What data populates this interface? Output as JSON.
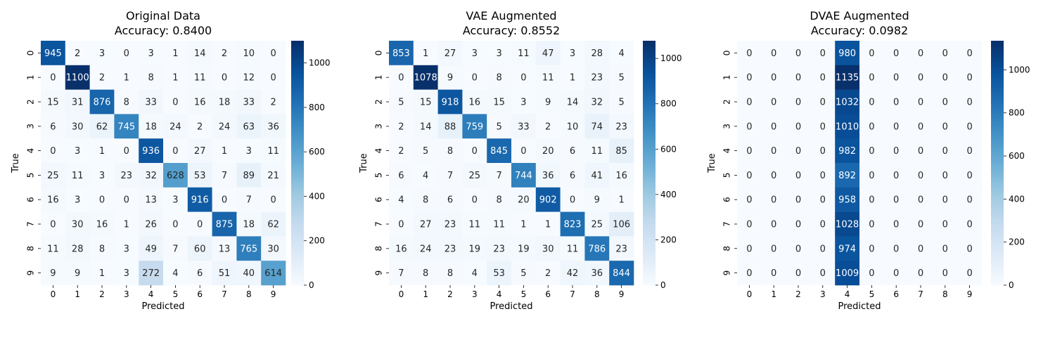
{
  "chart_data": [
    {
      "type": "heatmap",
      "title": "Original Data",
      "subtitle": "Accuracy: 0.8400",
      "xlabel": "Predicted",
      "ylabel": "True",
      "x_ticks": [
        "0",
        "1",
        "2",
        "3",
        "4",
        "5",
        "6",
        "7",
        "8",
        "9"
      ],
      "y_ticks": [
        "0",
        "1",
        "2",
        "3",
        "4",
        "5",
        "6",
        "7",
        "8",
        "9"
      ],
      "colorbar_ticks": [
        0,
        200,
        400,
        600,
        800,
        1000
      ],
      "vmin": 0,
      "vmax": 1100,
      "colormap": "Blues",
      "values": [
        [
          945,
          2,
          3,
          0,
          3,
          1,
          14,
          2,
          10,
          0
        ],
        [
          0,
          1100,
          2,
          1,
          8,
          1,
          11,
          0,
          12,
          0
        ],
        [
          15,
          31,
          876,
          8,
          33,
          0,
          16,
          18,
          33,
          2
        ],
        [
          6,
          30,
          62,
          745,
          18,
          24,
          2,
          24,
          63,
          36
        ],
        [
          0,
          3,
          1,
          0,
          936,
          0,
          27,
          1,
          3,
          11
        ],
        [
          25,
          11,
          3,
          23,
          32,
          628,
          53,
          7,
          89,
          21
        ],
        [
          16,
          3,
          0,
          0,
          13,
          3,
          916,
          0,
          7,
          0
        ],
        [
          0,
          30,
          16,
          1,
          26,
          0,
          0,
          875,
          18,
          62
        ],
        [
          11,
          28,
          8,
          3,
          49,
          7,
          60,
          13,
          765,
          30
        ],
        [
          9,
          9,
          1,
          3,
          272,
          4,
          6,
          51,
          40,
          614
        ]
      ]
    },
    {
      "type": "heatmap",
      "title": "VAE Augmented",
      "subtitle": "Accuracy: 0.8552",
      "xlabel": "Predicted",
      "ylabel": "True",
      "x_ticks": [
        "0",
        "1",
        "2",
        "3",
        "4",
        "5",
        "6",
        "7",
        "8",
        "9"
      ],
      "y_ticks": [
        "0",
        "1",
        "2",
        "3",
        "4",
        "5",
        "6",
        "7",
        "8",
        "9"
      ],
      "colorbar_ticks": [
        0,
        200,
        400,
        600,
        800,
        1000
      ],
      "vmin": 0,
      "vmax": 1078,
      "colormap": "Blues",
      "values": [
        [
          853,
          1,
          27,
          3,
          3,
          11,
          47,
          3,
          28,
          4
        ],
        [
          0,
          1078,
          9,
          0,
          8,
          0,
          11,
          1,
          23,
          5
        ],
        [
          5,
          15,
          918,
          16,
          15,
          3,
          9,
          14,
          32,
          5
        ],
        [
          2,
          14,
          88,
          759,
          5,
          33,
          2,
          10,
          74,
          23
        ],
        [
          2,
          5,
          8,
          0,
          845,
          0,
          20,
          6,
          11,
          85
        ],
        [
          6,
          4,
          7,
          25,
          7,
          744,
          36,
          6,
          41,
          16
        ],
        [
          4,
          8,
          6,
          0,
          8,
          20,
          902,
          0,
          9,
          1
        ],
        [
          0,
          27,
          23,
          11,
          11,
          1,
          1,
          823,
          25,
          106
        ],
        [
          16,
          24,
          23,
          19,
          23,
          19,
          30,
          11,
          786,
          23
        ],
        [
          7,
          8,
          8,
          4,
          53,
          5,
          2,
          42,
          36,
          844
        ]
      ]
    },
    {
      "type": "heatmap",
      "title": "DVAE Augmented",
      "subtitle": "Accuracy: 0.0982",
      "xlabel": "Predicted",
      "ylabel": "True",
      "x_ticks": [
        "0",
        "1",
        "2",
        "3",
        "4",
        "5",
        "6",
        "7",
        "8",
        "9"
      ],
      "y_ticks": [
        "0",
        "1",
        "2",
        "3",
        "4",
        "5",
        "6",
        "7",
        "8",
        "9"
      ],
      "colorbar_ticks": [
        0,
        200,
        400,
        600,
        800,
        1000
      ],
      "vmin": 0,
      "vmax": 1135,
      "colormap": "Blues",
      "values": [
        [
          0,
          0,
          0,
          0,
          980,
          0,
          0,
          0,
          0,
          0
        ],
        [
          0,
          0,
          0,
          0,
          1135,
          0,
          0,
          0,
          0,
          0
        ],
        [
          0,
          0,
          0,
          0,
          1032,
          0,
          0,
          0,
          0,
          0
        ],
        [
          0,
          0,
          0,
          0,
          1010,
          0,
          0,
          0,
          0,
          0
        ],
        [
          0,
          0,
          0,
          0,
          982,
          0,
          0,
          0,
          0,
          0
        ],
        [
          0,
          0,
          0,
          0,
          892,
          0,
          0,
          0,
          0,
          0
        ],
        [
          0,
          0,
          0,
          0,
          958,
          0,
          0,
          0,
          0,
          0
        ],
        [
          0,
          0,
          0,
          0,
          1028,
          0,
          0,
          0,
          0,
          0
        ],
        [
          0,
          0,
          0,
          0,
          974,
          0,
          0,
          0,
          0,
          0
        ],
        [
          0,
          0,
          0,
          0,
          1009,
          0,
          0,
          0,
          0,
          0
        ]
      ]
    }
  ]
}
